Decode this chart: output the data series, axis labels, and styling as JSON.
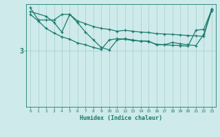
{
  "title": "",
  "xlabel": "Humidex (Indice chaleur)",
  "background_color": "#ceeaea",
  "line_color": "#1a7a6e",
  "grid_color": "#a8cccc",
  "xlim": [
    -0.5,
    23.5
  ],
  "ylim": [
    0,
    5.5
  ],
  "yticks": [
    3
  ],
  "ytick_labels": [
    "3"
  ],
  "line1_x": [
    0,
    1,
    2,
    3,
    4,
    5,
    6,
    7,
    8,
    9,
    10,
    11,
    12,
    13,
    14,
    15,
    16,
    17,
    18,
    19,
    20,
    21,
    22,
    23
  ],
  "line1_y": [
    5.3,
    4.65,
    4.65,
    4.65,
    4.95,
    4.95,
    4.6,
    4.45,
    4.3,
    4.2,
    4.15,
    4.05,
    4.1,
    4.05,
    4.0,
    3.98,
    3.92,
    3.9,
    3.88,
    3.85,
    3.82,
    3.8,
    3.78,
    5.25
  ],
  "line2_x": [
    0,
    1,
    2,
    3,
    4,
    5,
    6,
    7,
    8,
    9,
    10,
    11,
    12,
    13,
    14,
    15,
    16,
    17,
    18,
    19,
    20,
    21,
    22,
    23
  ],
  "line2_y": [
    4.95,
    4.6,
    4.2,
    3.95,
    3.75,
    3.62,
    3.42,
    3.32,
    3.18,
    3.08,
    3.58,
    3.65,
    3.62,
    3.55,
    3.52,
    3.5,
    3.35,
    3.32,
    3.3,
    3.28,
    3.25,
    4.1,
    4.15,
    5.2
  ],
  "line3_x": [
    0,
    2,
    3,
    4,
    5,
    6,
    7,
    8,
    9,
    10,
    11,
    12,
    13,
    14,
    15,
    16,
    17,
    18,
    19,
    20,
    21,
    22,
    23
  ],
  "line3_y": [
    5.1,
    4.85,
    4.52,
    4.0,
    4.95,
    4.5,
    4.0,
    3.58,
    3.18,
    3.05,
    3.58,
    3.65,
    3.58,
    3.52,
    3.52,
    3.32,
    3.32,
    3.45,
    3.38,
    3.32,
    3.28,
    3.88,
    5.15
  ]
}
